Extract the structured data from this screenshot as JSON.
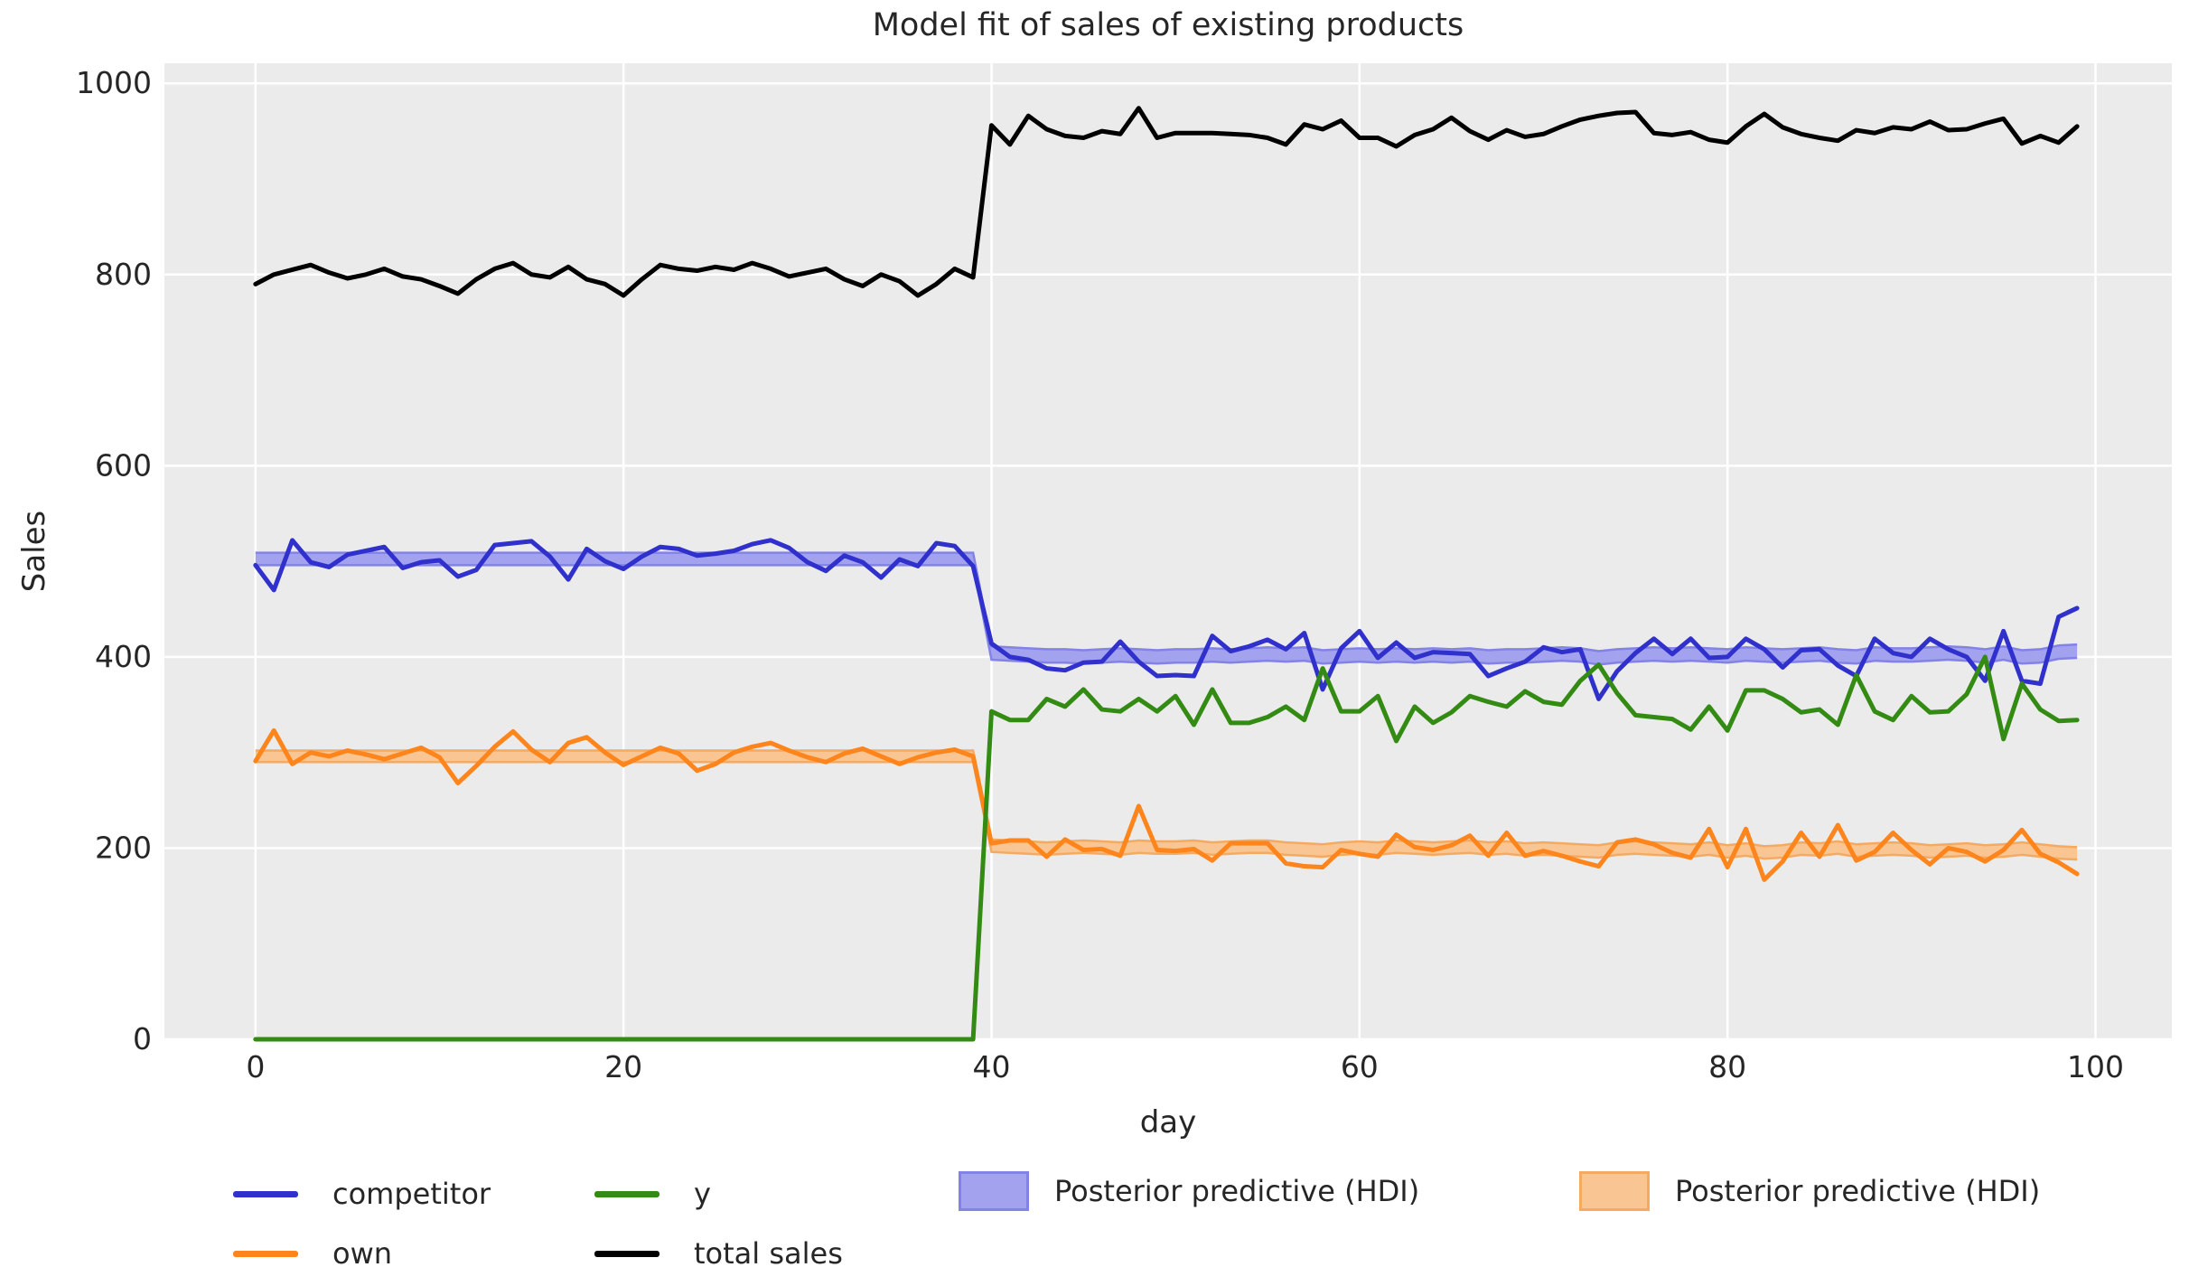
{
  "title": "Model fit of sales of existing products",
  "axes": {
    "xlabel": "day",
    "ylabel": "Sales"
  },
  "legend": {
    "competitor": {
      "label": "competitor",
      "color": "#3030cc"
    },
    "own": {
      "label": "own",
      "color": "#fd851c"
    },
    "y": {
      "label": "y",
      "color": "#348b13"
    },
    "total_sales": {
      "label": "total sales",
      "color": "#000000"
    },
    "hdi_blue": {
      "label": "Posterior predictive (HDI)",
      "fill": "#a2a2ef",
      "edge": "#8282e7"
    },
    "hdi_orange": {
      "label": "Posterior predictive (HDI)",
      "fill": "#f9c693",
      "edge": "#f4aa60"
    }
  },
  "chart_data": {
    "type": "line",
    "title": "Model fit of sales of existing products",
    "xlabel": "day",
    "ylabel": "Sales",
    "xlim": [
      -4.95,
      104.15
    ],
    "ylim": [
      0,
      1021
    ],
    "x_ticks": [
      0,
      20,
      40,
      60,
      80,
      100
    ],
    "y_ticks": [
      0,
      200,
      400,
      600,
      800,
      1000
    ],
    "grid": true,
    "background": "#ebebeb",
    "grid_color": "#ffffff",
    "text_color": "#262626",
    "x": [
      0,
      1,
      2,
      3,
      4,
      5,
      6,
      7,
      8,
      9,
      10,
      11,
      12,
      13,
      14,
      15,
      16,
      17,
      18,
      19,
      20,
      21,
      22,
      23,
      24,
      25,
      26,
      27,
      28,
      29,
      30,
      31,
      32,
      33,
      34,
      35,
      36,
      37,
      38,
      39,
      40,
      41,
      42,
      43,
      44,
      45,
      46,
      47,
      48,
      49,
      50,
      51,
      52,
      53,
      54,
      55,
      56,
      57,
      58,
      59,
      60,
      61,
      62,
      63,
      64,
      65,
      66,
      67,
      68,
      69,
      70,
      71,
      72,
      73,
      74,
      75,
      76,
      77,
      78,
      79,
      80,
      81,
      82,
      83,
      84,
      85,
      86,
      87,
      88,
      89,
      90,
      91,
      92,
      93,
      94,
      95,
      96,
      97,
      98,
      99
    ],
    "series": [
      {
        "name": "competitor",
        "color": "#3030cc",
        "width": 5,
        "values": [
          496,
          470,
          522,
          499,
          494,
          507,
          511,
          515,
          493,
          499,
          501,
          484,
          491,
          517,
          519,
          521,
          505,
          481,
          513,
          500,
          492,
          505,
          515,
          513,
          506,
          508,
          511,
          518,
          522,
          514,
          499,
          490,
          506,
          499,
          483,
          502,
          495,
          519,
          516,
          495,
          414,
          400,
          397,
          388,
          386,
          394,
          395,
          416,
          395,
          380,
          381,
          380,
          422,
          406,
          411,
          418,
          408,
          425,
          366,
          409,
          427,
          399,
          415,
          399,
          405,
          404,
          403,
          380,
          388,
          395,
          410,
          405,
          408,
          356,
          385,
          404,
          419,
          403,
          419,
          399,
          400,
          419,
          408,
          389,
          407,
          408,
          391,
          380,
          419,
          404,
          400,
          419,
          408,
          400,
          375,
          427,
          375,
          372,
          442,
          451
        ]
      },
      {
        "name": "own",
        "color": "#fd851c",
        "width": 5,
        "values": [
          291,
          323,
          288,
          300,
          296,
          302,
          298,
          293,
          299,
          305,
          295,
          268,
          286,
          306,
          322,
          303,
          290,
          310,
          316,
          300,
          287,
          296,
          305,
          299,
          281,
          288,
          300,
          306,
          310,
          302,
          295,
          290,
          299,
          304,
          296,
          288,
          295,
          300,
          303,
          296,
          205,
          208,
          208,
          191,
          209,
          198,
          199,
          192,
          244,
          198,
          197,
          199,
          187,
          205,
          205,
          205,
          184,
          181,
          180,
          198,
          194,
          191,
          214,
          201,
          198,
          203,
          213,
          192,
          216,
          192,
          197,
          192,
          186,
          181,
          206,
          209,
          204,
          195,
          190,
          220,
          180,
          220,
          167,
          186,
          216,
          191,
          224,
          187,
          196,
          216,
          198,
          183,
          200,
          196,
          186,
          198,
          219,
          194,
          185,
          173
        ]
      },
      {
        "name": "y",
        "color": "#348b13",
        "width": 5,
        "values": [
          0,
          0,
          0,
          0,
          0,
          0,
          0,
          0,
          0,
          0,
          0,
          0,
          0,
          0,
          0,
          0,
          0,
          0,
          0,
          0,
          0,
          0,
          0,
          0,
          0,
          0,
          0,
          0,
          0,
          0,
          0,
          0,
          0,
          0,
          0,
          0,
          0,
          0,
          0,
          0,
          343,
          334,
          334,
          356,
          348,
          366,
          345,
          343,
          356,
          343,
          359,
          329,
          366,
          331,
          331,
          337,
          348,
          334,
          388,
          343,
          343,
          359,
          312,
          348,
          331,
          342,
          359,
          353,
          348,
          364,
          353,
          350,
          375,
          392,
          362,
          339,
          337,
          335,
          324,
          348,
          323,
          365,
          365,
          356,
          342,
          345,
          329,
          381,
          343,
          334,
          359,
          342,
          343,
          361,
          400,
          314,
          372,
          345,
          333,
          334
        ]
      },
      {
        "name": "total sales",
        "color": "#000000",
        "width": 5,
        "values": [
          790,
          800,
          805,
          810,
          802,
          796,
          800,
          806,
          798,
          795,
          788,
          780,
          795,
          806,
          812,
          800,
          797,
          808,
          795,
          790,
          778,
          795,
          810,
          806,
          804,
          808,
          805,
          812,
          806,
          798,
          802,
          806,
          795,
          788,
          800,
          793,
          778,
          790,
          806,
          797,
          956,
          936,
          966,
          952,
          945,
          943,
          950,
          947,
          974,
          943,
          948,
          948,
          948,
          947,
          946,
          943,
          936,
          957,
          952,
          961,
          943,
          943,
          934,
          946,
          952,
          964,
          950,
          941,
          951,
          944,
          947,
          955,
          962,
          966,
          969,
          970,
          948,
          946,
          949,
          941,
          938,
          955,
          968,
          954,
          947,
          943,
          940,
          951,
          948,
          954,
          952,
          960,
          951,
          952,
          958,
          963,
          937,
          945,
          938,
          955
        ]
      }
    ],
    "bands": [
      {
        "name": "Posterior predictive (HDI) - competitor",
        "fill": "#a2a2ef",
        "edge": "#8282e7",
        "lo": [
          496,
          496,
          496,
          496,
          496,
          496,
          496,
          496,
          496,
          496,
          496,
          496,
          496,
          496,
          496,
          496,
          496,
          496,
          496,
          496,
          496,
          496,
          496,
          496,
          496,
          496,
          496,
          496,
          496,
          496,
          496,
          496,
          496,
          496,
          496,
          496,
          496,
          496,
          496,
          496,
          397,
          396,
          395,
          394,
          394,
          393,
          394,
          395,
          394,
          393,
          394,
          394,
          395,
          394,
          395,
          396,
          395,
          396,
          393,
          394,
          395,
          394,
          395,
          394,
          395,
          394,
          395,
          393,
          394,
          394,
          395,
          396,
          395,
          392,
          394,
          395,
          396,
          395,
          396,
          395,
          394,
          396,
          395,
          394,
          395,
          396,
          394,
          393,
          396,
          395,
          395,
          396,
          397,
          396,
          394,
          397,
          393,
          394,
          398,
          399
        ],
        "hi": [
          509,
          509,
          509,
          509,
          509,
          509,
          509,
          509,
          509,
          509,
          509,
          509,
          509,
          509,
          509,
          509,
          509,
          509,
          509,
          509,
          509,
          509,
          509,
          509,
          509,
          509,
          509,
          509,
          509,
          509,
          509,
          509,
          509,
          509,
          509,
          509,
          509,
          509,
          509,
          509,
          411,
          410,
          409,
          408,
          408,
          407,
          408,
          409,
          408,
          407,
          408,
          408,
          409,
          408,
          409,
          410,
          409,
          410,
          407,
          408,
          409,
          408,
          409,
          408,
          409,
          408,
          409,
          407,
          408,
          408,
          409,
          410,
          409,
          406,
          408,
          409,
          410,
          409,
          410,
          409,
          408,
          410,
          409,
          408,
          409,
          410,
          408,
          407,
          410,
          409,
          409,
          410,
          411,
          410,
          408,
          411,
          407,
          408,
          412,
          413
        ]
      },
      {
        "name": "Posterior predictive (HDI) - own",
        "fill": "#f9c693",
        "edge": "#f4aa60",
        "lo": [
          290,
          290,
          290,
          290,
          290,
          290,
          290,
          290,
          290,
          290,
          290,
          290,
          290,
          290,
          290,
          290,
          290,
          290,
          290,
          290,
          290,
          290,
          290,
          290,
          290,
          290,
          290,
          290,
          290,
          290,
          290,
          290,
          290,
          290,
          290,
          290,
          290,
          290,
          290,
          290,
          196,
          195,
          194,
          193,
          194,
          195,
          194,
          193,
          195,
          194,
          194,
          195,
          193,
          194,
          195,
          195,
          193,
          192,
          191,
          193,
          194,
          193,
          195,
          194,
          193,
          194,
          195,
          193,
          194,
          192,
          193,
          192,
          191,
          190,
          193,
          194,
          193,
          192,
          191,
          193,
          190,
          192,
          189,
          190,
          193,
          192,
          194,
          191,
          192,
          193,
          192,
          190,
          191,
          192,
          190,
          191,
          193,
          191,
          189,
          188
        ],
        "hi": [
          302,
          302,
          302,
          302,
          302,
          302,
          302,
          302,
          302,
          302,
          302,
          302,
          302,
          302,
          302,
          302,
          302,
          302,
          302,
          302,
          302,
          302,
          302,
          302,
          302,
          302,
          302,
          302,
          302,
          302,
          302,
          302,
          302,
          302,
          302,
          302,
          302,
          302,
          302,
          302,
          209,
          208,
          207,
          206,
          207,
          208,
          207,
          206,
          208,
          207,
          207,
          208,
          206,
          207,
          208,
          208,
          206,
          205,
          204,
          206,
          207,
          206,
          208,
          207,
          206,
          207,
          208,
          206,
          207,
          205,
          206,
          205,
          204,
          203,
          206,
          207,
          206,
          205,
          204,
          206,
          203,
          205,
          202,
          203,
          206,
          205,
          207,
          204,
          205,
          206,
          205,
          203,
          204,
          205,
          203,
          204,
          206,
          204,
          202,
          201
        ]
      }
    ]
  }
}
